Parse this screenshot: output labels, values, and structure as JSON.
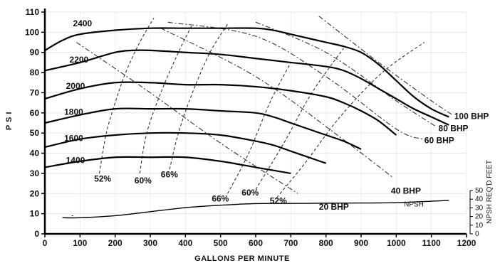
{
  "chart_data": {
    "type": "line",
    "xlabel": "GALLONS PER MINUTE",
    "ylabel": "P S I",
    "y2label": "NPSH REQ'D FEET",
    "xlim": [
      0,
      1200
    ],
    "ylim": [
      0,
      110
    ],
    "y2lim": [
      0,
      50
    ],
    "xticks": [
      "0",
      "100",
      "200",
      "300",
      "400",
      "500",
      "600",
      "700",
      "800",
      "900",
      "1000",
      "1100",
      "1200"
    ],
    "yticks": [
      "0",
      "10",
      "20",
      "30",
      "40",
      "50",
      "60",
      "70",
      "80",
      "90",
      "100",
      "110"
    ],
    "y2ticks": [
      "0",
      "10",
      "20",
      "30",
      "40",
      "50"
    ],
    "rpm_curves": [
      {
        "label": "2400",
        "label_at": [
          80,
          103
        ],
        "points": [
          [
            0,
            91
          ],
          [
            50,
            96
          ],
          [
            100,
            99
          ],
          [
            200,
            101
          ],
          [
            300,
            102
          ],
          [
            400,
            102
          ],
          [
            500,
            102
          ],
          [
            600,
            102
          ],
          [
            650,
            101
          ],
          [
            700,
            99
          ],
          [
            800,
            95
          ],
          [
            850,
            93
          ],
          [
            900,
            90
          ],
          [
            950,
            84
          ],
          [
            1000,
            76
          ],
          [
            1050,
            68
          ],
          [
            1100,
            62
          ],
          [
            1150,
            58
          ]
        ]
      },
      {
        "label": "2200",
        "label_at": [
          70,
          85
        ],
        "points": [
          [
            0,
            81
          ],
          [
            100,
            85
          ],
          [
            200,
            90
          ],
          [
            250,
            91
          ],
          [
            300,
            91
          ],
          [
            400,
            90
          ],
          [
            500,
            89
          ],
          [
            600,
            87
          ],
          [
            700,
            85
          ],
          [
            800,
            83
          ],
          [
            850,
            81
          ],
          [
            900,
            77
          ],
          [
            950,
            72
          ],
          [
            1000,
            67
          ],
          [
            1050,
            62
          ],
          [
            1100,
            58
          ],
          [
            1150,
            54
          ]
        ]
      },
      {
        "label": "2000",
        "label_at": [
          60,
          72
        ],
        "points": [
          [
            0,
            67
          ],
          [
            100,
            72
          ],
          [
            200,
            75
          ],
          [
            300,
            75
          ],
          [
            400,
            74
          ],
          [
            500,
            74
          ],
          [
            600,
            73
          ],
          [
            700,
            71
          ],
          [
            800,
            68
          ],
          [
            850,
            65
          ],
          [
            900,
            61
          ],
          [
            950,
            56
          ],
          [
            1000,
            49
          ]
        ]
      },
      {
        "label": "1800",
        "label_at": [
          55,
          59
        ],
        "points": [
          [
            0,
            55
          ],
          [
            100,
            59
          ],
          [
            200,
            62
          ],
          [
            300,
            62
          ],
          [
            400,
            62
          ],
          [
            500,
            61
          ],
          [
            600,
            60
          ],
          [
            650,
            58
          ],
          [
            700,
            55
          ],
          [
            750,
            52
          ],
          [
            800,
            49
          ],
          [
            850,
            46
          ],
          [
            900,
            42
          ]
        ]
      },
      {
        "label": "1600",
        "label_at": [
          55,
          46
        ],
        "points": [
          [
            0,
            43
          ],
          [
            100,
            47
          ],
          [
            200,
            49
          ],
          [
            300,
            50
          ],
          [
            400,
            50
          ],
          [
            500,
            49
          ],
          [
            600,
            46
          ],
          [
            650,
            44
          ],
          [
            700,
            41
          ],
          [
            750,
            38
          ],
          [
            800,
            35
          ]
        ]
      },
      {
        "label": "1400",
        "label_at": [
          60,
          35
        ],
        "points": [
          [
            0,
            33
          ],
          [
            100,
            36
          ],
          [
            200,
            38
          ],
          [
            300,
            38
          ],
          [
            400,
            38
          ],
          [
            500,
            36
          ],
          [
            600,
            33
          ],
          [
            700,
            30
          ]
        ]
      }
    ],
    "npsh_curve": {
      "label": "NPSH",
      "label_at": [
        1050,
        13.5
      ],
      "points": [
        [
          50,
          8
        ],
        [
          100,
          8
        ],
        [
          200,
          9
        ],
        [
          300,
          11
        ],
        [
          400,
          13
        ],
        [
          500,
          14.2
        ],
        [
          600,
          15
        ],
        [
          700,
          15.1
        ],
        [
          800,
          15.2
        ],
        [
          900,
          15.3
        ],
        [
          1000,
          15.5
        ],
        [
          1100,
          16.2
        ],
        [
          1150,
          16.6
        ]
      ]
    },
    "efficiency_lines": [
      {
        "label": "52%",
        "label_at": [
          140,
          26
        ],
        "points": [
          [
            155,
            30
          ],
          [
            175,
            50
          ],
          [
            200,
            65
          ],
          [
            230,
            80
          ],
          [
            270,
            95
          ],
          [
            310,
            107
          ]
        ]
      },
      {
        "label": "60%",
        "label_at": [
          255,
          25
        ],
        "points": [
          [
            270,
            30
          ],
          [
            290,
            50
          ],
          [
            330,
            70
          ],
          [
            380,
            90
          ],
          [
            420,
            104
          ]
        ]
      },
      {
        "label": "66%",
        "label_at": [
          330,
          28
        ],
        "points": [
          [
            355,
            32
          ],
          [
            380,
            50
          ],
          [
            420,
            70
          ],
          [
            470,
            90
          ],
          [
            520,
            104
          ]
        ]
      },
      {
        "label": "66%",
        "label_at": [
          475,
          16
        ],
        "points": [
          [
            520,
            20
          ],
          [
            580,
            40
          ],
          [
            640,
            65
          ],
          [
            700,
            85
          ]
        ]
      },
      {
        "label": "60%",
        "label_at": [
          560,
          19
        ],
        "points": [
          [
            600,
            22
          ],
          [
            680,
            45
          ],
          [
            760,
            70
          ],
          [
            850,
            92
          ]
        ]
      },
      {
        "label": "52%",
        "label_at": [
          640,
          15
        ],
        "points": [
          [
            660,
            18
          ],
          [
            740,
            35
          ],
          [
            840,
            58
          ],
          [
            960,
            80
          ],
          [
            1080,
            95
          ]
        ]
      }
    ],
    "bhp_lines": [
      {
        "label": "20 BHP",
        "label_at": [
          780,
          12
        ],
        "points": [
          [
            90,
            95
          ],
          [
            300,
            70
          ],
          [
            500,
            45
          ],
          [
            720,
            20
          ]
        ]
      },
      {
        "label": "40 BHP",
        "label_at": [
          985,
          20
        ],
        "points": [
          [
            330,
            102
          ],
          [
            600,
            78
          ],
          [
            840,
            48
          ],
          [
            990,
            28
          ]
        ]
      },
      {
        "label": "60 BHP",
        "label_at": [
          1080,
          45
        ],
        "points": [
          [
            350,
            105
          ],
          [
            600,
            98
          ],
          [
            800,
            78
          ],
          [
            1000,
            52
          ],
          [
            1075,
            47
          ]
        ]
      },
      {
        "label": "80 BHP",
        "label_at": [
          1120,
          51
        ],
        "points": [
          [
            600,
            105
          ],
          [
            800,
            90
          ],
          [
            1000,
            66
          ],
          [
            1115,
            53
          ]
        ]
      },
      {
        "label": "100 BHP",
        "label_at": [
          1165,
          57
        ],
        "points": [
          [
            780,
            108
          ],
          [
            950,
            85
          ],
          [
            1100,
            66
          ],
          [
            1160,
            59
          ]
        ]
      }
    ],
    "marks": [
      {
        "text": "-",
        "at": [
          75,
          8
        ]
      }
    ]
  }
}
